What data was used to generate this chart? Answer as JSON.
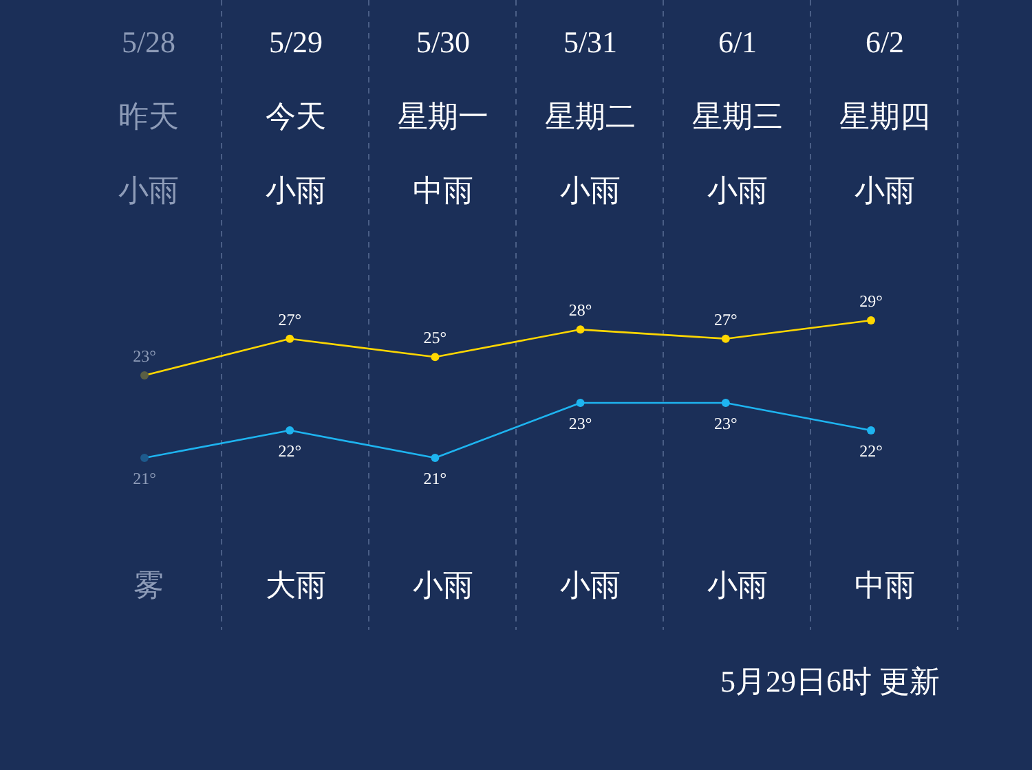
{
  "chart_data": [
    {
      "type": "line",
      "categories": [
        "5/28",
        "5/29",
        "5/30",
        "5/31",
        "6/1",
        "6/2"
      ],
      "series": [
        {
          "color": "#ffd700",
          "colors": [
            "#5a5f45",
            "#ffd700",
            "#ffd700",
            "#ffd700",
            "#ffd700",
            "#ffd700"
          ],
          "values": [
            23,
            27,
            25,
            28,
            27,
            29
          ],
          "value_labels": [
            "23°",
            "27°",
            "25°",
            "28°",
            "27°",
            "29°"
          ]
        }
      ],
      "marker": "circle",
      "grid": "x",
      "annotations": [
        "昨天",
        "今天",
        "星期一",
        "星期二",
        "星期三",
        "星期四",
        "小雨",
        "小雨",
        "中雨",
        "小雨",
        "小雨",
        "小雨",
        "雾",
        "大雨",
        "小雨",
        "小雨",
        "小雨",
        "中雨",
        "5月29日6时 更新"
      ]
    },
    {
      "type": "line",
      "categories": [
        null,
        null,
        null,
        null,
        null,
        null
      ],
      "series": [
        {
          "color": "#1eb4f0",
          "colors": [
            "#1e5a8c",
            "#1eb4f0",
            "#1eb4f0",
            "#1eb4f0",
            "#1eb4f0",
            "#1eb4f0"
          ],
          "values": [
            21,
            22,
            21,
            23,
            23,
            22
          ],
          "value_labels": [
            "21°",
            "22°",
            "21°",
            "23°",
            "23°",
            "22°"
          ]
        }
      ],
      "marker": "circle"
    }
  ]
}
